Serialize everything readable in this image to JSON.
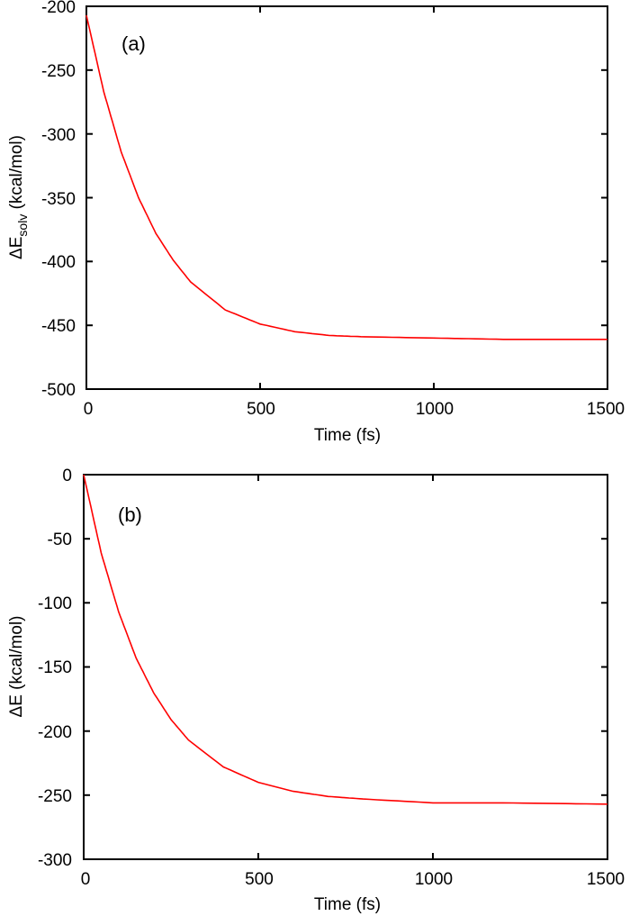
{
  "chart_data": [
    {
      "panel": "(a)",
      "type": "line",
      "title": "",
      "xlabel": "Time (fs)",
      "ylabel": "ΔE_solv (kcal/mol)",
      "ylabel_main": "ΔE",
      "ylabel_sub": "solv",
      "ylabel_unit": " (kcal/mol)",
      "xlim": [
        0,
        1500
      ],
      "ylim": [
        -500,
        -200
      ],
      "xticks": [
        0,
        500,
        1000,
        1500
      ],
      "yticks": [
        -200,
        -250,
        -300,
        -350,
        -400,
        -450,
        -500
      ],
      "grid": false,
      "legend": null,
      "series": [
        {
          "name": "ΔE_solv",
          "color": "#ff0000",
          "x": [
            0,
            50,
            100,
            150,
            200,
            250,
            300,
            400,
            500,
            600,
            700,
            800,
            1000,
            1200,
            1500
          ],
          "y": [
            -207,
            -267,
            -314,
            -350,
            -378,
            -399,
            -416,
            -438,
            -449,
            -455,
            -458,
            -459,
            -460,
            -461,
            -461
          ]
        }
      ]
    },
    {
      "panel": "(b)",
      "type": "line",
      "title": "",
      "xlabel": "Time (fs)",
      "ylabel": "ΔE (kcal/mol)",
      "xlim": [
        0,
        1500
      ],
      "ylim": [
        -300,
        0
      ],
      "xticks": [
        0,
        500,
        1000,
        1500
      ],
      "yticks": [
        0,
        -50,
        -100,
        -150,
        -200,
        -250,
        -300
      ],
      "grid": false,
      "legend": null,
      "series": [
        {
          "name": "ΔE",
          "color": "#ff0000",
          "x": [
            0,
            50,
            100,
            150,
            200,
            250,
            300,
            400,
            500,
            600,
            700,
            800,
            1000,
            1200,
            1500
          ],
          "y": [
            0,
            -61,
            -107,
            -143,
            -170,
            -191,
            -207,
            -228,
            -240,
            -247,
            -251,
            -253,
            -256,
            -256,
            -257
          ]
        }
      ]
    }
  ],
  "panels": [
    {
      "label": "(a)",
      "xlabel": "Time (fs)",
      "ylabel_main": "ΔE",
      "ylabel_sub": "solv",
      "ylabel_unit": " (kcal/mol)",
      "xtick_labels": [
        "0",
        "500",
        "1000",
        "1500"
      ],
      "ytick_labels": [
        "-200",
        "-250",
        "-300",
        "-350",
        "-400",
        "-450",
        "-500"
      ]
    },
    {
      "label": "(b)",
      "xlabel": "Time (fs)",
      "ylabel": "ΔE (kcal/mol)",
      "xtick_labels": [
        "0",
        "500",
        "1000",
        "1500"
      ],
      "ytick_labels": [
        "0",
        "-50",
        "-100",
        "-150",
        "-200",
        "-250",
        "-300"
      ]
    }
  ],
  "colors": {
    "line": "#ff0000",
    "axis": "#000000",
    "background": "#ffffff"
  }
}
